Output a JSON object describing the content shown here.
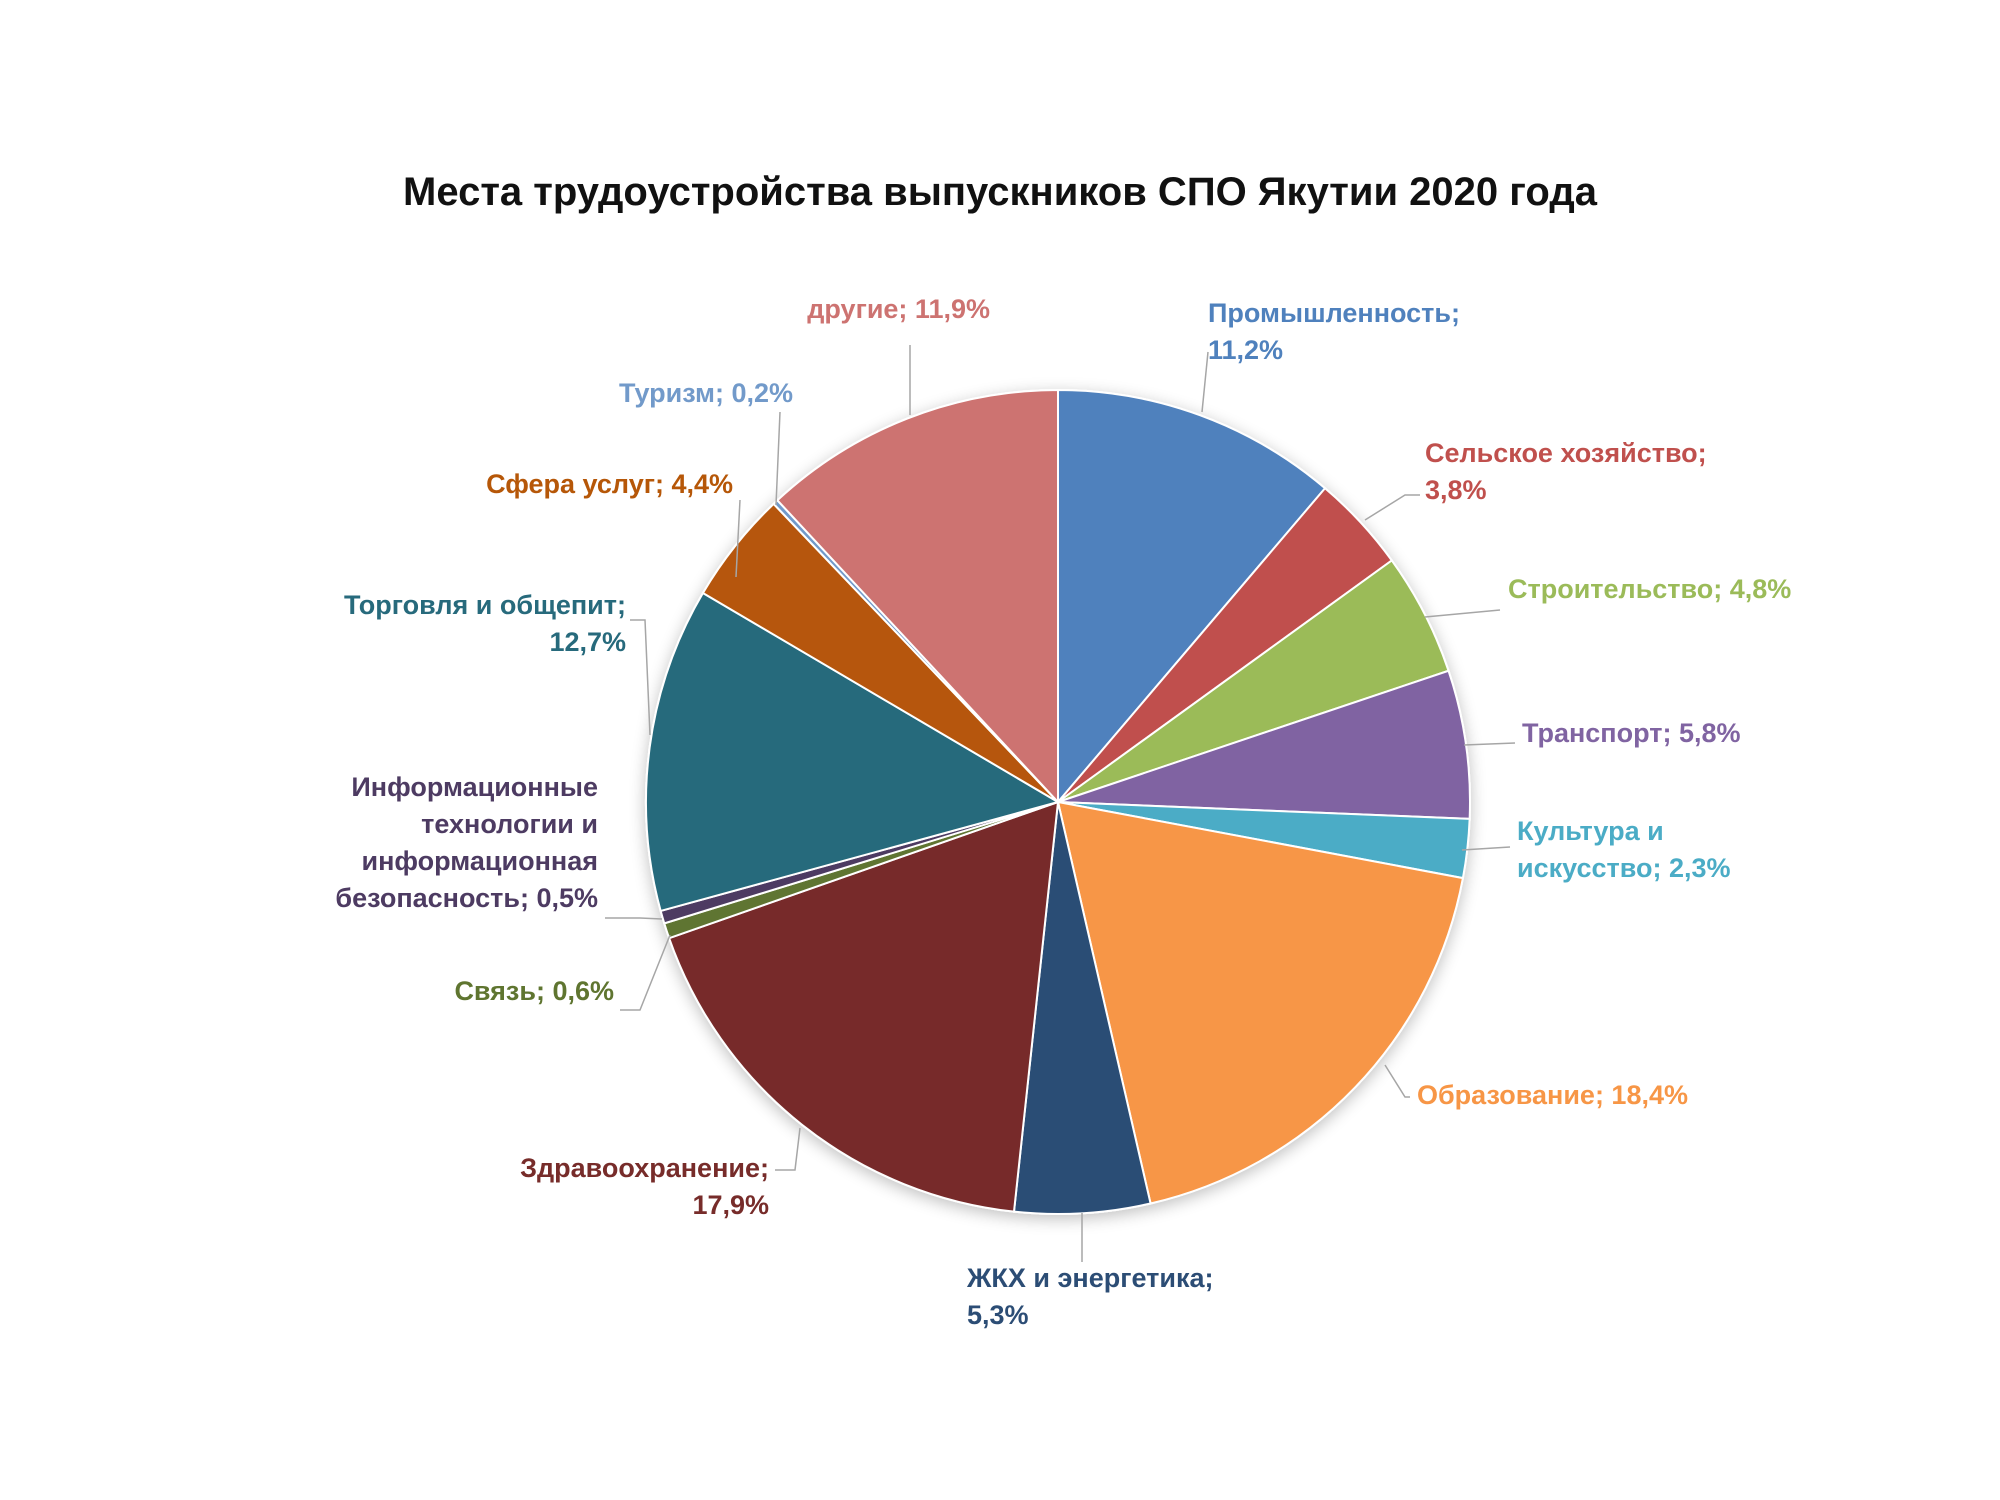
{
  "chart_data": {
    "type": "pie",
    "title": "Места трудоустройства выпускников СПО Якутии 2020 года",
    "slices": [
      {
        "label": "Промышленность",
        "value": 11.2,
        "value_text": "11,2%",
        "color": "#4F81BD"
      },
      {
        "label": "Сельское хозяйство",
        "value": 3.8,
        "value_text": "3,8%",
        "color": "#C0504D"
      },
      {
        "label": "Строительство",
        "value": 4.8,
        "value_text": "4,8%",
        "color": "#9BBB59"
      },
      {
        "label": "Транспорт",
        "value": 5.8,
        "value_text": "5,8%",
        "color": "#8064A2"
      },
      {
        "label": "Культура и искусство",
        "value": 2.3,
        "value_text": "2,3%",
        "color": "#4BACC6"
      },
      {
        "label": "Образование",
        "value": 18.4,
        "value_text": "18,4%",
        "color": "#F79646"
      },
      {
        "label": "ЖКХ и энергетика",
        "value": 5.3,
        "value_text": "5,3%",
        "color": "#2C4D75"
      },
      {
        "label": "Здравоохранение",
        "value": 17.9,
        "value_text": "17,9%",
        "color": "#772C2A"
      },
      {
        "label": "Связь",
        "value": 0.6,
        "value_text": "0,6%",
        "color": "#5F7530"
      },
      {
        "label": "Информационные технологии и информационная безопасность",
        "value": 0.5,
        "value_text": "0,5%",
        "color": "#4D3B62"
      },
      {
        "label": "Торговля и общепит",
        "value": 12.7,
        "value_text": "12,7%",
        "color": "#276A7C"
      },
      {
        "label": "Сфера услуг",
        "value": 4.4,
        "value_text": "4,4%",
        "color": "#B65708"
      },
      {
        "label": "Туризм",
        "value": 0.2,
        "value_text": "0,2%",
        "color": "#729ACA"
      },
      {
        "label": "другие",
        "value": 11.9,
        "value_text": "11,9%",
        "color": "#CD7371"
      }
    ],
    "data_labels": [
      [
        "Промышленность;",
        "11,2%"
      ],
      [
        "Сельское хозяйство;",
        "3,8%"
      ],
      [
        "Строительство; 4,8%"
      ],
      [
        "Транспорт; 5,8%"
      ],
      [
        "Культура и",
        "искусство; 2,3%"
      ],
      [
        "Образование; 18,4%"
      ],
      [
        "ЖКХ и энергетика;",
        "5,3%"
      ],
      [
        "Здравоохранение;",
        "17,9%"
      ],
      [
        "Связь; 0,6%"
      ],
      [
        "Информационные",
        "технологии и",
        "информационная",
        "безопасность; 0,5%"
      ],
      [
        "Торговля и общепит;",
        "12,7%"
      ],
      [
        "Сфера услуг; 4,4%"
      ],
      [
        "Туризм; 0,2%"
      ],
      [
        "другие; 11,9%"
      ]
    ],
    "start_angle": "12 o'clock",
    "direction": "clockwise",
    "legend": "none"
  }
}
